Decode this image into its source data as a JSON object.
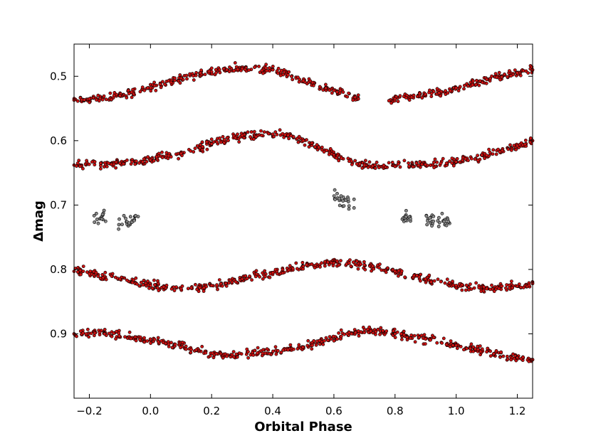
{
  "chart_data": {
    "type": "scatter",
    "title": "",
    "xlabel": "Orbital Phase",
    "ylabel": "Δmag",
    "xlim": [
      -0.25,
      1.25
    ],
    "ylim": [
      1.0,
      0.45
    ],
    "y_inverted": true,
    "grid": false,
    "legend": "none",
    "x_ticks": [
      "−0.2",
      "0.0",
      "0.2",
      "0.4",
      "0.6",
      "0.8",
      "1.0",
      "1.2"
    ],
    "x_tick_values": [
      -0.2,
      0.0,
      0.2,
      0.4,
      0.6,
      0.8,
      1.0,
      1.2
    ],
    "y_ticks": [
      "0.5",
      "0.6",
      "0.7",
      "0.8",
      "0.9"
    ],
    "y_tick_values": [
      0.5,
      0.6,
      0.7,
      0.8,
      0.9
    ],
    "series": [
      {
        "color": "#cc1111",
        "marker_edge": "#000000",
        "x": [
          -0.25,
          -0.2,
          -0.1,
          0.0,
          0.1,
          0.2,
          0.25,
          0.3,
          0.4,
          0.5,
          0.6,
          0.68,
          0.78,
          0.8,
          0.9,
          1.0,
          1.1,
          1.2,
          1.25
        ],
        "y": [
          0.537,
          0.535,
          0.53,
          0.518,
          0.503,
          0.493,
          0.49,
          0.488,
          0.49,
          0.507,
          0.522,
          0.535,
          0.538,
          0.535,
          0.528,
          0.518,
          0.505,
          0.495,
          0.49
        ]
      },
      {
        "color": "#cc1111",
        "marker_edge": "#000000",
        "x": [
          -0.25,
          -0.1,
          0.0,
          0.1,
          0.2,
          0.3,
          0.4,
          0.45,
          0.5,
          0.55,
          0.6,
          0.65,
          0.7,
          0.8,
          0.9,
          1.0,
          1.1,
          1.2,
          1.25
        ],
        "y": [
          0.638,
          0.635,
          0.63,
          0.62,
          0.605,
          0.592,
          0.59,
          0.592,
          0.6,
          0.61,
          0.622,
          0.632,
          0.638,
          0.64,
          0.637,
          0.633,
          0.623,
          0.608,
          0.6
        ]
      },
      {
        "color": "#cc1111",
        "marker_edge": "#000000",
        "x": [
          -0.25,
          -0.2,
          -0.1,
          0.0,
          0.1,
          0.2,
          0.3,
          0.4,
          0.5,
          0.6,
          0.65,
          0.7,
          0.8,
          0.9,
          1.0,
          1.1,
          1.2,
          1.25
        ],
        "y": [
          0.803,
          0.807,
          0.815,
          0.825,
          0.83,
          0.825,
          0.815,
          0.805,
          0.795,
          0.79,
          0.79,
          0.793,
          0.803,
          0.815,
          0.825,
          0.83,
          0.826,
          0.822
        ]
      },
      {
        "color": "#cc1111",
        "marker_edge": "#000000",
        "x": [
          -0.25,
          -0.15,
          -0.05,
          0.05,
          0.15,
          0.25,
          0.35,
          0.45,
          0.58,
          0.65,
          0.72,
          0.8,
          0.9,
          1.0,
          1.1,
          1.2,
          1.25
        ],
        "y": [
          0.9,
          0.9,
          0.905,
          0.915,
          0.925,
          0.935,
          0.93,
          0.925,
          0.91,
          0.898,
          0.896,
          0.9,
          0.908,
          0.918,
          0.928,
          0.937,
          0.94
        ]
      },
      {
        "color": "#888888",
        "marker_edge": "#000000",
        "x": [
          -0.17,
          -0.16,
          -0.09,
          -0.07,
          -0.05,
          0.61,
          0.63,
          0.65,
          0.83,
          0.84,
          0.91,
          0.93,
          0.95,
          0.97
        ],
        "y": [
          0.722,
          0.72,
          0.725,
          0.727,
          0.722,
          0.69,
          0.692,
          0.695,
          0.722,
          0.72,
          0.725,
          0.727,
          0.722,
          0.728
        ]
      }
    ]
  }
}
